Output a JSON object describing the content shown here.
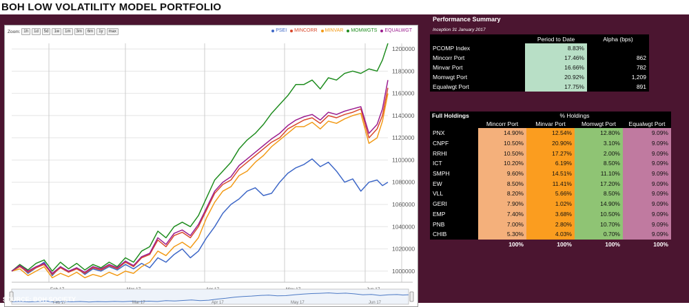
{
  "page_title": "BOH LOW VOLATILITY MODEL PORTFOLIO",
  "source": "SOURCE: BOH SOCIETY",
  "zoom": {
    "label": "Zoom:",
    "buttons": [
      "1h",
      "1d",
      "5d",
      "1w",
      "1m",
      "3m",
      "6m",
      "1y",
      "max"
    ]
  },
  "legend": [
    {
      "name": "PSEI",
      "color": "#3d67c7"
    },
    {
      "name": "MINCORR",
      "color": "#d9482b"
    },
    {
      "name": "MINVAR",
      "color": "#f29a16"
    },
    {
      "name": "MOMWGTS",
      "color": "#1e8c1e"
    },
    {
      "name": "EQUALWGT",
      "color": "#9b1d8f"
    }
  ],
  "chart_data": {
    "type": "line",
    "y_ticks": [
      "1000000",
      "1020000",
      "1040000",
      "1060000",
      "1080000",
      "1100000",
      "1120000",
      "1140000",
      "1160000",
      "1180000",
      "1200000"
    ],
    "ylim": [
      990000,
      1205000
    ],
    "x_ticks": [
      "Feb 17",
      "Mar 17",
      "Apr 17",
      "May 17",
      "Jun 17"
    ],
    "navigator_ticks": [
      "Feb 17",
      "Mar 17",
      "Apr 17",
      "May 17",
      "Jun 17"
    ],
    "x_count": 120,
    "x_tick_index": [
      13,
      41,
      70,
      94,
      119
    ],
    "series": [
      {
        "name": "PSEI",
        "color": "#3d67c7",
        "points": [
          [
            0,
            1000000
          ],
          [
            3,
            1005000
          ],
          [
            6,
            998000
          ],
          [
            9,
            1003000
          ],
          [
            12,
            1008000
          ],
          [
            15,
            996000
          ],
          [
            18,
            1004000
          ],
          [
            21,
            999000
          ],
          [
            24,
            1003000
          ],
          [
            27,
            997000
          ],
          [
            30,
            1002000
          ],
          [
            33,
            1000000
          ],
          [
            36,
            1004000
          ],
          [
            39,
            1001000
          ],
          [
            42,
            1006000
          ],
          [
            45,
            1002000
          ],
          [
            48,
            1007000
          ],
          [
            51,
            1003000
          ],
          [
            54,
            1012000
          ],
          [
            57,
            1008000
          ],
          [
            60,
            1015000
          ],
          [
            63,
            1020000
          ],
          [
            66,
            1012000
          ],
          [
            69,
            1018000
          ],
          [
            72,
            1030000
          ],
          [
            75,
            1040000
          ],
          [
            78,
            1052000
          ],
          [
            81,
            1060000
          ],
          [
            84,
            1065000
          ],
          [
            87,
            1072000
          ],
          [
            90,
            1075000
          ],
          [
            93,
            1068000
          ],
          [
            96,
            1070000
          ],
          [
            99,
            1080000
          ],
          [
            102,
            1088000
          ],
          [
            105,
            1093000
          ],
          [
            108,
            1096000
          ],
          [
            111,
            1101000
          ],
          [
            114,
            1094000
          ],
          [
            117,
            1098000
          ],
          [
            120,
            1090000
          ],
          [
            123,
            1080000
          ],
          [
            126,
            1083000
          ],
          [
            129,
            1072000
          ],
          [
            132,
            1080000
          ],
          [
            135,
            1082000
          ],
          [
            137,
            1077000
          ],
          [
            139,
            1080000
          ]
        ]
      },
      {
        "name": "MINCORR",
        "color": "#d9482b",
        "points": [
          [
            0,
            1000000
          ],
          [
            3,
            1004000
          ],
          [
            6,
            999000
          ],
          [
            9,
            1003000
          ],
          [
            12,
            1006000
          ],
          [
            15,
            997000
          ],
          [
            18,
            1003000
          ],
          [
            21,
            999000
          ],
          [
            24,
            1002000
          ],
          [
            27,
            998000
          ],
          [
            30,
            1003000
          ],
          [
            33,
            1001000
          ],
          [
            36,
            1005000
          ],
          [
            39,
            1002000
          ],
          [
            42,
            1008000
          ],
          [
            45,
            1004000
          ],
          [
            48,
            1012000
          ],
          [
            51,
            1015000
          ],
          [
            54,
            1028000
          ],
          [
            57,
            1022000
          ],
          [
            60,
            1032000
          ],
          [
            63,
            1035000
          ],
          [
            66,
            1030000
          ],
          [
            69,
            1040000
          ],
          [
            72,
            1055000
          ],
          [
            75,
            1070000
          ],
          [
            78,
            1078000
          ],
          [
            81,
            1082000
          ],
          [
            84,
            1092000
          ],
          [
            87,
            1098000
          ],
          [
            90,
            1104000
          ],
          [
            93,
            1110000
          ],
          [
            96,
            1116000
          ],
          [
            99,
            1120000
          ],
          [
            102,
            1128000
          ],
          [
            105,
            1132000
          ],
          [
            108,
            1136000
          ],
          [
            111,
            1138000
          ],
          [
            114,
            1133000
          ],
          [
            117,
            1140000
          ],
          [
            120,
            1138000
          ],
          [
            123,
            1141000
          ],
          [
            126,
            1143000
          ],
          [
            129,
            1146000
          ],
          [
            132,
            1120000
          ],
          [
            135,
            1128000
          ],
          [
            137,
            1140000
          ],
          [
            139,
            1165000
          ]
        ]
      },
      {
        "name": "MINVAR",
        "color": "#f29a16",
        "points": [
          [
            0,
            1000000
          ],
          [
            3,
            1002000
          ],
          [
            6,
            996000
          ],
          [
            9,
            1000000
          ],
          [
            12,
            1004000
          ],
          [
            15,
            994000
          ],
          [
            18,
            998000
          ],
          [
            21,
            995000
          ],
          [
            24,
            999000
          ],
          [
            27,
            994000
          ],
          [
            30,
            997000
          ],
          [
            33,
            995000
          ],
          [
            36,
            999000
          ],
          [
            39,
            996000
          ],
          [
            42,
            1000000
          ],
          [
            45,
            998000
          ],
          [
            48,
            1004000
          ],
          [
            51,
            1008000
          ],
          [
            54,
            1018000
          ],
          [
            57,
            1014000
          ],
          [
            60,
            1022000
          ],
          [
            63,
            1026000
          ],
          [
            66,
            1021000
          ],
          [
            69,
            1030000
          ],
          [
            72,
            1048000
          ],
          [
            75,
            1062000
          ],
          [
            78,
            1072000
          ],
          [
            81,
            1076000
          ],
          [
            84,
            1086000
          ],
          [
            87,
            1090000
          ],
          [
            90,
            1098000
          ],
          [
            93,
            1104000
          ],
          [
            96,
            1112000
          ],
          [
            99,
            1118000
          ],
          [
            102,
            1124000
          ],
          [
            105,
            1130000
          ],
          [
            108,
            1130000
          ],
          [
            111,
            1134000
          ],
          [
            114,
            1128000
          ],
          [
            117,
            1135000
          ],
          [
            120,
            1133000
          ],
          [
            123,
            1137000
          ],
          [
            126,
            1140000
          ],
          [
            129,
            1142000
          ],
          [
            132,
            1115000
          ],
          [
            135,
            1120000
          ],
          [
            137,
            1135000
          ],
          [
            139,
            1160000
          ]
        ]
      },
      {
        "name": "MOMWGTS",
        "color": "#1e8c1e",
        "points": [
          [
            0,
            1000000
          ],
          [
            3,
            1006000
          ],
          [
            6,
            1001000
          ],
          [
            9,
            1007000
          ],
          [
            12,
            1010000
          ],
          [
            15,
            1000000
          ],
          [
            18,
            1008000
          ],
          [
            21,
            1002000
          ],
          [
            24,
            1007000
          ],
          [
            27,
            1001000
          ],
          [
            30,
            1006000
          ],
          [
            33,
            1003000
          ],
          [
            36,
            1008000
          ],
          [
            39,
            1004000
          ],
          [
            42,
            1012000
          ],
          [
            45,
            1008000
          ],
          [
            48,
            1018000
          ],
          [
            51,
            1022000
          ],
          [
            54,
            1036000
          ],
          [
            57,
            1030000
          ],
          [
            60,
            1040000
          ],
          [
            63,
            1044000
          ],
          [
            66,
            1040000
          ],
          [
            69,
            1050000
          ],
          [
            72,
            1066000
          ],
          [
            75,
            1082000
          ],
          [
            78,
            1090000
          ],
          [
            81,
            1098000
          ],
          [
            84,
            1110000
          ],
          [
            87,
            1118000
          ],
          [
            90,
            1124000
          ],
          [
            93,
            1132000
          ],
          [
            96,
            1142000
          ],
          [
            99,
            1150000
          ],
          [
            102,
            1158000
          ],
          [
            105,
            1168000
          ],
          [
            108,
            1168000
          ],
          [
            111,
            1172000
          ],
          [
            114,
            1164000
          ],
          [
            117,
            1174000
          ],
          [
            120,
            1172000
          ],
          [
            123,
            1178000
          ],
          [
            126,
            1180000
          ],
          [
            129,
            1178000
          ],
          [
            132,
            1182000
          ],
          [
            135,
            1180000
          ],
          [
            137,
            1190000
          ],
          [
            139,
            1205000
          ]
        ]
      },
      {
        "name": "EQUALWGT",
        "color": "#9b1d8f",
        "points": [
          [
            0,
            1000000
          ],
          [
            3,
            1005000
          ],
          [
            6,
            1000000
          ],
          [
            9,
            1004000
          ],
          [
            12,
            1007000
          ],
          [
            15,
            998000
          ],
          [
            18,
            1004000
          ],
          [
            21,
            1000000
          ],
          [
            24,
            1003000
          ],
          [
            27,
            999000
          ],
          [
            30,
            1004000
          ],
          [
            33,
            1002000
          ],
          [
            36,
            1006000
          ],
          [
            39,
            1003000
          ],
          [
            42,
            1009000
          ],
          [
            45,
            1005000
          ],
          [
            48,
            1013000
          ],
          [
            51,
            1016000
          ],
          [
            54,
            1030000
          ],
          [
            57,
            1024000
          ],
          [
            60,
            1034000
          ],
          [
            63,
            1037000
          ],
          [
            66,
            1032000
          ],
          [
            69,
            1042000
          ],
          [
            72,
            1057000
          ],
          [
            75,
            1072000
          ],
          [
            78,
            1080000
          ],
          [
            81,
            1085000
          ],
          [
            84,
            1095000
          ],
          [
            87,
            1101000
          ],
          [
            90,
            1107000
          ],
          [
            93,
            1113000
          ],
          [
            96,
            1119000
          ],
          [
            99,
            1124000
          ],
          [
            102,
            1131000
          ],
          [
            105,
            1136000
          ],
          [
            108,
            1139000
          ],
          [
            111,
            1141000
          ],
          [
            114,
            1136000
          ],
          [
            117,
            1143000
          ],
          [
            120,
            1141000
          ],
          [
            123,
            1144000
          ],
          [
            126,
            1146000
          ],
          [
            129,
            1148000
          ],
          [
            132,
            1124000
          ],
          [
            135,
            1132000
          ],
          [
            137,
            1146000
          ],
          [
            139,
            1172000
          ]
        ]
      }
    ]
  },
  "performance": {
    "title": "Performance Summary",
    "subtitle": "Inception 31 January 2017",
    "headers": [
      "",
      "Period to Date",
      "Alpha (bps)"
    ],
    "rows": [
      {
        "name": "PCOMP Index",
        "ptd": "8.83%",
        "alpha": ""
      },
      {
        "name": "Mincorr Port",
        "ptd": "17.46%",
        "alpha": "862"
      },
      {
        "name": "Minvar Port",
        "ptd": "16.66%",
        "alpha": "782"
      },
      {
        "name": "Momwgt Port",
        "ptd": "20.92%",
        "alpha": "1,209"
      },
      {
        "name": "Equalwgt Port",
        "ptd": "17.75%",
        "alpha": "891"
      }
    ]
  },
  "holdings": {
    "title": "Full Holdings",
    "group_header": "% Holdings",
    "columns": [
      "Mincorr Port",
      "Minvar Port",
      "Momwgt Port",
      "Equalwgt Port"
    ],
    "rows": [
      {
        "name": "PNX",
        "v": [
          "14.90%",
          "12.54%",
          "12.80%",
          "9.09%"
        ]
      },
      {
        "name": "CNPF",
        "v": [
          "10.50%",
          "20.90%",
          "3.10%",
          "9.09%"
        ]
      },
      {
        "name": "RRHI",
        "v": [
          "10.50%",
          "17.27%",
          "2.00%",
          "9.09%"
        ]
      },
      {
        "name": "ICT",
        "v": [
          "10.20%",
          "6.19%",
          "8.50%",
          "9.09%"
        ]
      },
      {
        "name": "SMPH",
        "v": [
          "9.60%",
          "14.51%",
          "11.10%",
          "9.09%"
        ]
      },
      {
        "name": "EW",
        "v": [
          "8.50%",
          "11.41%",
          "17.20%",
          "9.09%"
        ]
      },
      {
        "name": "VLL",
        "v": [
          "8.20%",
          "5.66%",
          "8.50%",
          "9.09%"
        ]
      },
      {
        "name": "GERI",
        "v": [
          "7.90%",
          "1.02%",
          "14.90%",
          "9.09%"
        ]
      },
      {
        "name": "EMP",
        "v": [
          "7.40%",
          "3.68%",
          "10.50%",
          "9.09%"
        ]
      },
      {
        "name": "PNB",
        "v": [
          "7.00%",
          "2.80%",
          "10.70%",
          "9.09%"
        ]
      },
      {
        "name": "CHIB",
        "v": [
          "5.30%",
          "4.03%",
          "0.70%",
          "9.09%"
        ]
      }
    ],
    "totals": [
      "100%",
      "100%",
      "100%",
      "100%"
    ]
  }
}
